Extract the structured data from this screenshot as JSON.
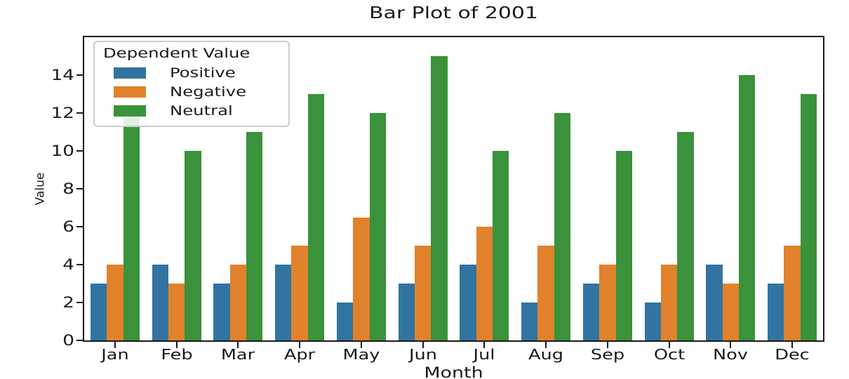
{
  "chart_data": {
    "type": "bar",
    "title": "Bar Plot of 2001",
    "xlabel": "Month",
    "ylabel": "Value",
    "categories": [
      "Jan",
      "Feb",
      "Mar",
      "Apr",
      "May",
      "Jun",
      "Jul",
      "Aug",
      "Sep",
      "Oct",
      "Nov",
      "Dec"
    ],
    "series": [
      {
        "name": "Positive",
        "color": "#3274a1",
        "values": [
          3,
          4,
          3,
          4,
          2,
          3,
          4,
          2,
          3,
          2,
          4,
          3
        ]
      },
      {
        "name": "Negative",
        "color": "#e1812c",
        "values": [
          4,
          3,
          4,
          5,
          6.5,
          5,
          6,
          5,
          4,
          4,
          3,
          5
        ]
      },
      {
        "name": "Neutral",
        "color": "#3a923a",
        "values": [
          12,
          10,
          11,
          13,
          12,
          15,
          10,
          12,
          10,
          11,
          14,
          13
        ]
      }
    ],
    "legend": {
      "title": "Dependent Value",
      "position": "upper left"
    },
    "ylim": [
      0,
      16
    ],
    "yticks": [
      0,
      2,
      4,
      6,
      8,
      10,
      12,
      14
    ],
    "grid": false,
    "colors": {
      "axis": "#1a1a1a",
      "background": "#ffffff",
      "legend_border": "#cccccc"
    }
  }
}
